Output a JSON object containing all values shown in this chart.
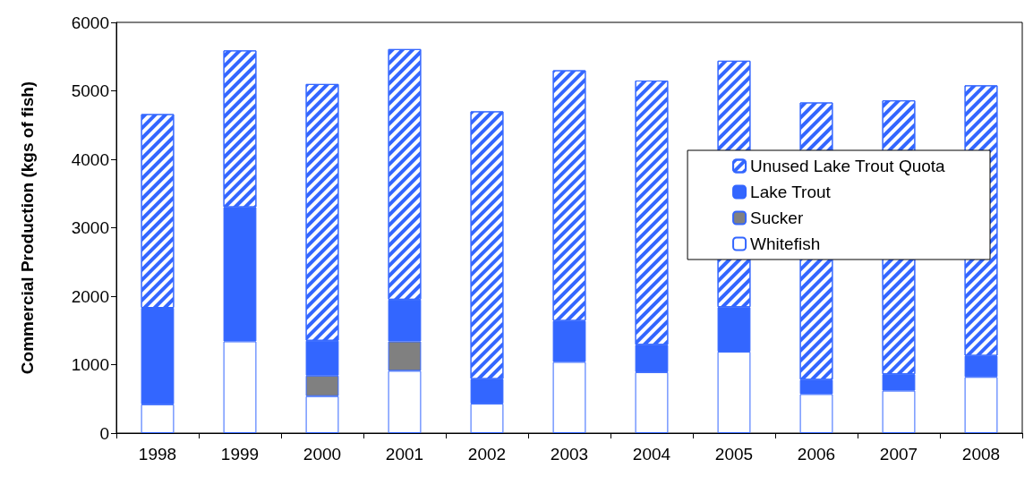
{
  "chart_data": {
    "type": "bar",
    "stacked": true,
    "ylabel": "Commercial Production (kgs of fish)",
    "categories": [
      "1998",
      "1999",
      "2000",
      "2001",
      "2002",
      "2003",
      "2004",
      "2005",
      "2006",
      "2007",
      "2008"
    ],
    "ylim": [
      0,
      6000
    ],
    "yticks": [
      0,
      1000,
      2000,
      3000,
      4000,
      5000,
      6000
    ],
    "grid": false,
    "legend": "right",
    "series": [
      {
        "name": "Whitefish",
        "color": "#ffffff",
        "values": [
          420,
          1340,
          540,
          910,
          430,
          1040,
          890,
          1190,
          570,
          620,
          820
        ]
      },
      {
        "name": "Sucker",
        "color": "#808080",
        "values": [
          null,
          null,
          300,
          430,
          null,
          null,
          null,
          null,
          null,
          null,
          null
        ]
      },
      {
        "name": "Lake Trout",
        "color": "#3366ff",
        "values": [
          1410,
          1960,
          510,
          610,
          360,
          600,
          400,
          650,
          210,
          240,
          310
        ]
      },
      {
        "name": "Unused Lake Trout Quota",
        "color": "#3366ff",
        "values": [
          2830,
          2290,
          3750,
          3660,
          3910,
          3660,
          3860,
          3600,
          4050,
          4000,
          3950
        ]
      }
    ]
  }
}
